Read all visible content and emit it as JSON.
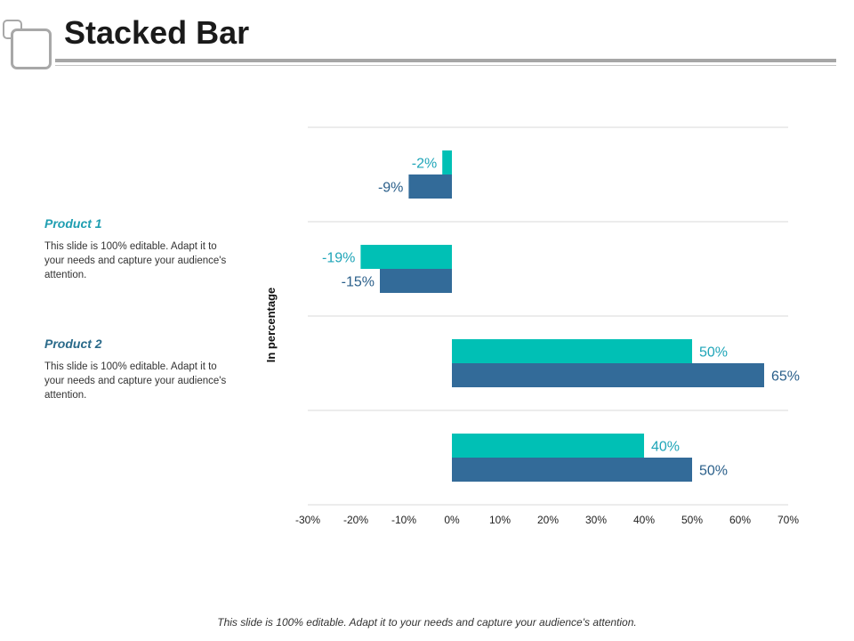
{
  "slide": {
    "title": "Stacked Bar",
    "footer": "This slide is 100% editable. Adapt it to your needs and capture your audience's attention."
  },
  "products": [
    {
      "name": "Product 1",
      "description": "This slide is 100% editable. Adapt it to your needs and capture your audience's attention."
    },
    {
      "name": "Product 2",
      "description": "This slide is 100% editable. Adapt it to your needs and capture your audience's attention."
    }
  ],
  "colors": {
    "product1": "#00c0b5",
    "product2": "#336b99",
    "grid": "#d9d9d9",
    "label1": "#1fa5b8",
    "label2": "#2a5f8a"
  },
  "chart_data": {
    "type": "bar",
    "orientation": "horizontal",
    "ylabel": "In percentage",
    "xlim": [
      -30,
      70
    ],
    "xticks": [
      "-30%",
      "-20%",
      "-10%",
      "0%",
      "10%",
      "20%",
      "30%",
      "40%",
      "50%",
      "60%",
      "70%"
    ],
    "grid": true,
    "legend": "none",
    "series": [
      {
        "values": [
          -2,
          -19,
          50,
          40
        ],
        "labels": [
          "-2%",
          "-19%",
          "50%",
          "40%"
        ]
      },
      {
        "values": [
          -9,
          -15,
          65,
          50
        ],
        "labels": [
          "-9%",
          "-15%",
          "65%",
          "50%"
        ]
      }
    ]
  }
}
